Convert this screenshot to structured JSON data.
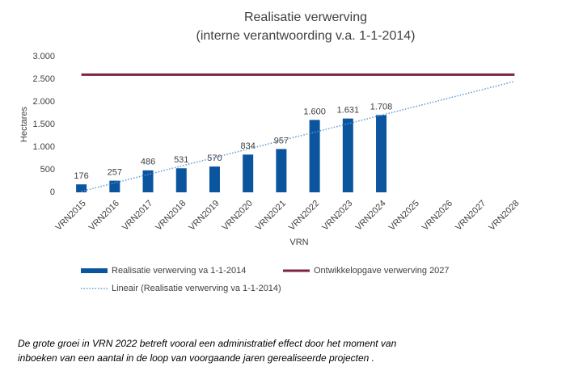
{
  "chart_data": {
    "type": "combo",
    "title": "Realisatie verwerving",
    "subtitle": "(interne verantwoording v.a. 1-1-2014)",
    "x_label": "VRN",
    "y_label": "Hectares",
    "categories": [
      "VRN2015",
      "VRN2016",
      "VRN2017",
      "VRN2018",
      "VRN2019",
      "VRN2020",
      "VRN2021",
      "VRN2022",
      "VRN2023",
      "VRN2024",
      "VRN2025",
      "VRN2026",
      "VRN2027",
      "VRN2028"
    ],
    "series": [
      {
        "name": "Realisatie verwerving va 1-1-2014",
        "type": "bar",
        "color": "#0b559f",
        "values": [
          176,
          257,
          486,
          531,
          570,
          834,
          957,
          1600,
          1631,
          1708,
          null,
          null,
          null,
          null
        ],
        "value_labels": [
          "176",
          "257",
          "486",
          "531",
          "570",
          "834",
          "957",
          "1.600",
          "1.631",
          "1.708",
          null,
          null,
          null,
          null
        ]
      },
      {
        "name": "Ontwikkelopgave verwerving 2027",
        "type": "line",
        "color": "#7b2343",
        "values": [
          2600,
          2600,
          2600,
          2600,
          2600,
          2600,
          2600,
          2600,
          2600,
          2600,
          2600,
          2600,
          2600,
          2600
        ]
      },
      {
        "name": "Lineair (Realisatie verwerving va 1-1-2014)",
        "type": "dotted",
        "color": "#5b9bd5",
        "values": [
          20,
          207,
          394,
          581,
          768,
          955,
          1142,
          1329,
          1516,
          1703,
          1890,
          2077,
          2264,
          2451
        ]
      }
    ],
    "ylim": [
      0,
      3000
    ],
    "yticks": [
      0,
      500,
      {
        "value": 1000,
        "label": "1.000"
      },
      {
        "value": 1500,
        "label": "1.500"
      },
      {
        "value": 2000,
        "label": "2.000"
      },
      {
        "value": 2500,
        "label": "2.500"
      },
      {
        "value": 3000,
        "label": "3.000"
      }
    ],
    "grid": false,
    "legend": "bottom",
    "annotations": [
      "De grote groei in VRN 2022 betreft vooral een administratief effect door het moment van",
      "inboeken van een aantal in de loop van voorgaande jaren gerealiseerde projecten ."
    ]
  }
}
